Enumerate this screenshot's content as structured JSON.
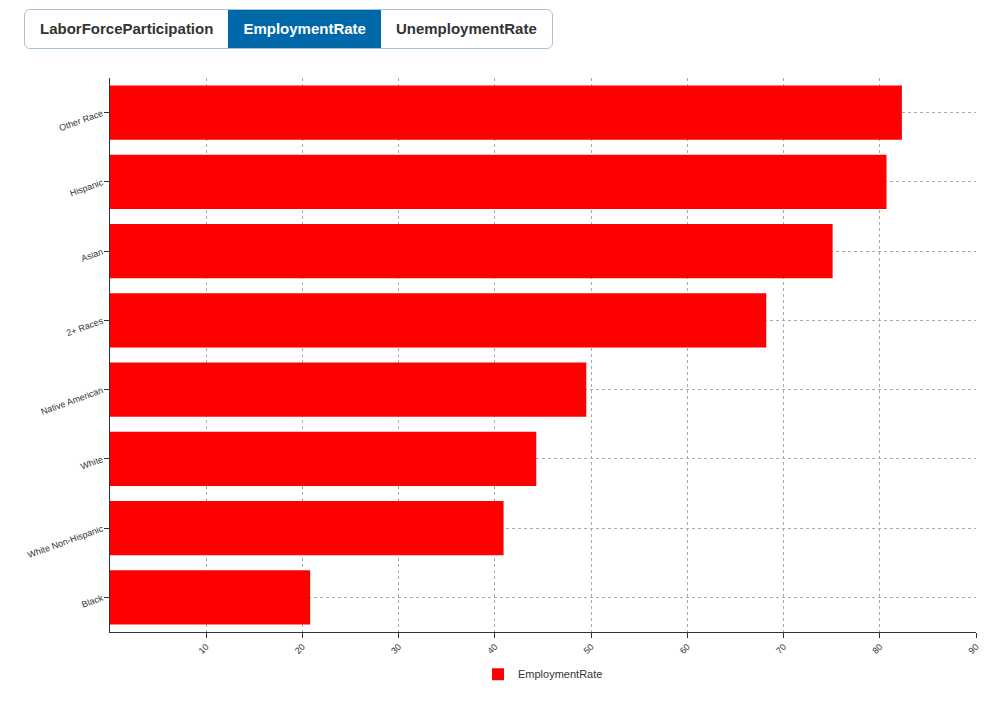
{
  "tabs": {
    "labels": [
      "LaborForceParticipation",
      "EmploymentRate",
      "UnemploymentRate"
    ],
    "selected": "EmploymentRate"
  },
  "chart_data": {
    "type": "bar",
    "orientation": "horizontal",
    "categories": [
      "Other Race",
      "Hispanic",
      "Asian",
      "2+ Races",
      "Native American",
      "White",
      "White Non-Hispanic",
      "Black"
    ],
    "series": [
      {
        "name": "EmploymentRate",
        "color": "#ff0000",
        "values": [
          82.3,
          80.7,
          75.1,
          68.2,
          49.5,
          44.3,
          40.9,
          20.8
        ]
      }
    ],
    "xlim": [
      0,
      90
    ],
    "xticks": [
      10,
      20,
      30,
      40,
      50,
      60,
      70,
      80,
      90
    ],
    "grid": true,
    "legend": "bottom"
  }
}
